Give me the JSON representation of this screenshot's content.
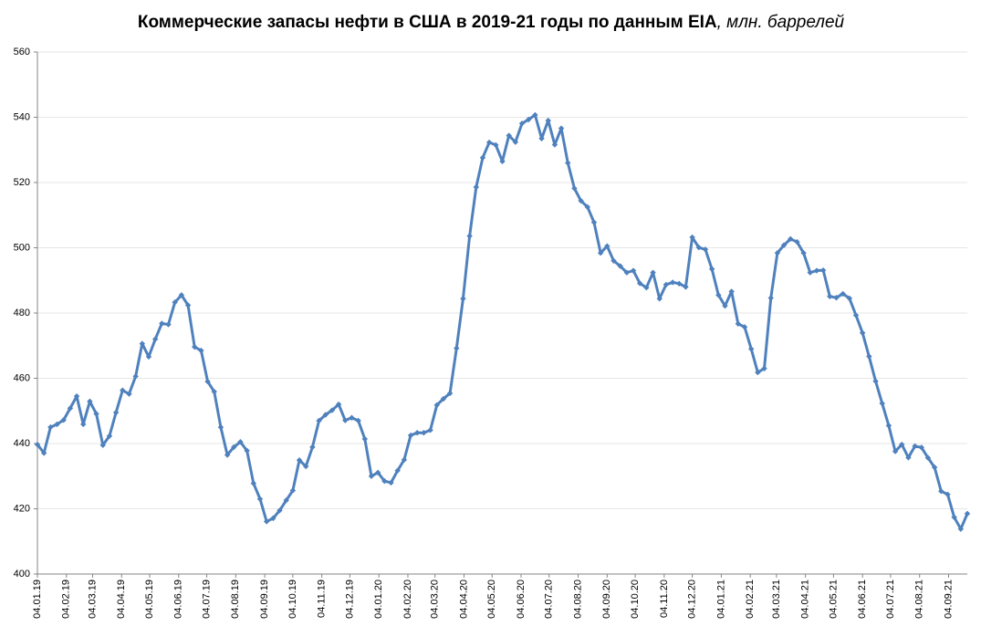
{
  "chart_data": {
    "type": "line",
    "title": "Коммерческие запасы нефти в США в 2019-21 годы по данным EIA",
    "subtitle": ", млн. баррелей",
    "color": "#4f81bd",
    "grid": true,
    "x": [
      "04.01.19",
      "11.01.19",
      "18.01.19",
      "25.01.19",
      "01.02.19",
      "08.02.19",
      "15.02.19",
      "22.02.19",
      "01.03.19",
      "08.03.19",
      "15.03.19",
      "22.03.19",
      "29.03.19",
      "05.04.19",
      "12.04.19",
      "19.04.19",
      "26.04.19",
      "03.05.19",
      "10.05.19",
      "17.05.19",
      "24.05.19",
      "31.05.19",
      "07.06.19",
      "14.06.19",
      "21.06.19",
      "28.06.19",
      "05.07.19",
      "12.07.19",
      "19.07.19",
      "26.07.19",
      "02.08.19",
      "09.08.19",
      "16.08.19",
      "23.08.19",
      "30.08.19",
      "06.09.19",
      "13.09.19",
      "20.09.19",
      "27.09.19",
      "04.10.19",
      "11.10.19",
      "18.10.19",
      "25.10.19",
      "01.11.19",
      "08.11.19",
      "15.11.19",
      "22.11.19",
      "29.11.19",
      "06.12.19",
      "13.12.19",
      "20.12.19",
      "27.12.19",
      "03.01.20",
      "10.01.20",
      "17.01.20",
      "24.01.20",
      "31.01.20",
      "07.02.20",
      "14.02.20",
      "21.02.20",
      "28.02.20",
      "06.03.20",
      "13.03.20",
      "20.03.20",
      "27.03.20",
      "03.04.20",
      "10.04.20",
      "17.04.20",
      "24.04.20",
      "01.05.20",
      "08.05.20",
      "15.05.20",
      "22.05.20",
      "29.05.20",
      "05.06.20",
      "12.06.20",
      "19.06.20",
      "26.06.20",
      "03.07.20",
      "10.07.20",
      "17.07.20",
      "24.07.20",
      "31.07.20",
      "07.08.20",
      "14.08.20",
      "21.08.20",
      "28.08.20",
      "04.09.20",
      "11.09.20",
      "18.09.20",
      "25.09.20",
      "02.10.20",
      "09.10.20",
      "16.10.20",
      "23.10.20",
      "30.10.20",
      "06.11.20",
      "13.11.20",
      "20.11.20",
      "27.11.20",
      "04.12.20",
      "11.12.20",
      "18.12.20",
      "25.12.20",
      "01.01.21",
      "08.01.21",
      "15.01.21",
      "22.01.21",
      "29.01.21",
      "05.02.21",
      "12.02.21",
      "19.02.21",
      "26.02.21",
      "05.03.21",
      "12.03.21",
      "19.03.21",
      "26.03.21",
      "02.04.21",
      "09.04.21",
      "16.04.21",
      "23.04.21",
      "30.04.21",
      "07.05.21",
      "14.05.21",
      "21.05.21",
      "28.05.21",
      "04.06.21",
      "11.06.21",
      "18.06.21",
      "25.06.21",
      "02.07.21",
      "09.07.21",
      "16.07.21",
      "23.07.21",
      "30.07.21",
      "06.08.21",
      "13.08.21",
      "20.08.21",
      "27.08.21",
      "03.09.21",
      "10.09.21",
      "17.09.21",
      "24.09.21"
    ],
    "values": [
      439.7,
      437.1,
      445.0,
      445.9,
      447.2,
      450.8,
      454.5,
      445.9,
      452.9,
      449.1,
      439.5,
      442.3,
      449.5,
      456.3,
      455.2,
      460.6,
      470.6,
      466.6,
      472.0,
      476.8,
      476.5,
      483.3,
      485.5,
      482.4,
      469.6,
      468.5,
      459.0,
      455.9,
      445.0,
      436.5,
      438.9,
      440.5,
      437.8,
      427.8,
      423.0,
      416.1,
      417.1,
      419.5,
      422.6,
      425.6,
      434.9,
      433.0,
      438.9,
      447.0,
      448.8,
      450.2,
      452.0,
      447.1,
      447.9,
      447.0,
      441.4,
      430.0,
      431.1,
      428.5,
      428.0,
      431.7,
      435.0,
      442.5,
      443.3,
      443.3,
      444.1,
      451.8,
      453.7,
      455.4,
      469.2,
      484.4,
      503.6,
      518.6,
      527.6,
      532.3,
      531.5,
      526.5,
      534.4,
      532.4,
      538.1,
      539.3,
      540.7,
      533.5,
      539.0,
      531.6,
      536.6,
      526.0,
      518.2,
      514.4,
      512.5,
      507.8,
      498.4,
      500.5,
      496.0,
      494.4,
      492.4,
      493.0,
      489.1,
      487.8,
      492.4,
      484.4,
      488.7,
      489.4,
      489.0,
      488.0,
      503.2,
      500.1,
      499.5,
      493.5,
      485.5,
      482.2,
      486.6,
      476.7,
      475.7,
      469.0,
      461.8,
      463.0,
      484.6,
      498.4,
      500.8,
      502.7,
      501.8,
      498.4,
      492.4,
      493.0,
      493.1,
      485.1,
      484.7,
      485.9,
      484.5,
      479.3,
      473.9,
      466.7,
      459.1,
      452.3,
      445.5,
      437.6,
      439.7,
      435.7,
      439.2,
      438.8,
      435.6,
      432.7,
      425.4,
      424.4,
      417.4,
      413.8,
      418.5
    ],
    "xlim": [
      "04.01.19",
      "24.09.21"
    ],
    "xticks": [
      "04.01.19",
      "04.02.19",
      "04.03.19",
      "04.04.19",
      "04.05.19",
      "04.06.19",
      "04.07.19",
      "04.08.19",
      "04.09.19",
      "04.10.19",
      "04.11.19",
      "04.12.19",
      "04.01.20",
      "04.02.20",
      "04.03.20",
      "04.04.20",
      "04.05.20",
      "04.06.20",
      "04.07.20",
      "04.08.20",
      "04.09.20",
      "04.10.20",
      "04.11.20",
      "04.12.20",
      "04.01.21",
      "04.02.21",
      "04.03.21",
      "04.04.21",
      "04.05.21",
      "04.06.21",
      "04.07.21",
      "04.08.21",
      "04.09.21"
    ],
    "ylim": [
      400,
      560
    ],
    "yticks": [
      400,
      420,
      440,
      460,
      480,
      500,
      520,
      540,
      560
    ]
  }
}
